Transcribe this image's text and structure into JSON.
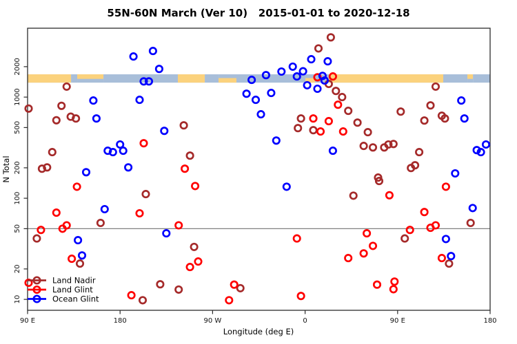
{
  "title": "55N-60N March (Ver 10)   2015-01-01 to 2020-12-18",
  "chart_data": {
    "type": "scatter",
    "title": "55N-60N March (Ver 10)   2015-01-01 to 2020-12-18",
    "xlabel": "Longitude (deg E)",
    "ylabel": "N Total",
    "x_axis": {
      "min": -270,
      "max": 180,
      "ticks": [
        {
          "value": -270,
          "label": "90 E"
        },
        {
          "value": -180,
          "label": "180"
        },
        {
          "value": -90,
          "label": "90 W"
        },
        {
          "value": 0,
          "label": "0"
        },
        {
          "value": 90,
          "label": "90 E"
        },
        {
          "value": 180,
          "label": "180"
        }
      ]
    },
    "y_axis": {
      "scale": "log",
      "min": 7.8,
      "max": 4800,
      "ticks": [
        2000,
        1000,
        500,
        200,
        100,
        50,
        20,
        10
      ]
    },
    "reference_line_y": 50,
    "grid": "off",
    "legend_position": "bottom-left",
    "map_band": {
      "value_top": 1680,
      "value_bottom": 1390,
      "land_color": "#FBD27D",
      "ocean_color": "#A8BED9",
      "segments": [
        {
          "from": -270,
          "to": -227.7,
          "type": "land"
        },
        {
          "from": -227.7,
          "to": -221.7,
          "type": "ocean"
        },
        {
          "from": -221.7,
          "to": -196.2,
          "type": "land_top"
        },
        {
          "from": -196.2,
          "to": -123.8,
          "type": "ocean"
        },
        {
          "from": -123.8,
          "to": -97.6,
          "type": "land"
        },
        {
          "from": -97.6,
          "to": -84.2,
          "type": "ocean"
        },
        {
          "from": -84.2,
          "to": -66.8,
          "type": "land_bottom"
        },
        {
          "from": -66.8,
          "to": 0.3,
          "type": "ocean"
        },
        {
          "from": 0.3,
          "to": 9.7,
          "type": "land_bottom"
        },
        {
          "from": 9.7,
          "to": 23.1,
          "type": "ocean"
        },
        {
          "from": 23.1,
          "to": 134.4,
          "type": "land"
        },
        {
          "from": 134.4,
          "to": 157.9,
          "type": "ocean"
        },
        {
          "from": 157.9,
          "to": 163.3,
          "type": "land_top"
        },
        {
          "from": 163.3,
          "to": 180,
          "type": "ocean"
        }
      ]
    },
    "series": [
      {
        "name": "Land Nadir",
        "color": "#A52A2A",
        "marker": "open-circle",
        "points": [
          [
            -269,
            770
          ],
          [
            -232,
            1270
          ],
          [
            -237,
            820
          ],
          [
            -228,
            640
          ],
          [
            -223,
            615
          ],
          [
            -242,
            590
          ],
          [
            -246,
            286
          ],
          [
            -256,
            196
          ],
          [
            -251,
            202
          ],
          [
            -118,
            526
          ],
          [
            -112,
            264
          ],
          [
            25,
            3900
          ],
          [
            13,
            3030
          ],
          [
            23,
            1350
          ],
          [
            30,
            1150
          ],
          [
            36,
            1000
          ],
          [
            -4,
            615
          ],
          [
            -7,
            494
          ],
          [
            8,
            471
          ],
          [
            127,
            1270
          ],
          [
            42,
            731
          ],
          [
            93,
            719
          ],
          [
            122,
            828
          ],
          [
            133,
            655
          ],
          [
            136,
            615
          ],
          [
            116,
            587
          ],
          [
            51,
            560
          ],
          [
            61,
            450
          ],
          [
            57,
            329
          ],
          [
            66,
            318
          ],
          [
            77,
            318
          ],
          [
            81,
            340
          ],
          [
            86,
            344
          ],
          [
            111,
            286
          ],
          [
            103,
            199
          ],
          [
            107,
            212
          ],
          [
            71,
            160
          ],
          [
            -155,
            110
          ],
          [
            -199,
            57
          ],
          [
            -261,
            40
          ],
          [
            -219,
            22.6
          ],
          [
            -141,
            14.1
          ],
          [
            -123,
            12.5
          ],
          [
            -158,
            9.8
          ],
          [
            -108,
            33
          ],
          [
            -63,
            12.9
          ],
          [
            72,
            148
          ],
          [
            47,
            106
          ],
          [
            97,
            40
          ],
          [
            161,
            57
          ],
          [
            140,
            22.6
          ]
        ]
      },
      {
        "name": "Land Glint",
        "color": "#FF0000",
        "marker": "open-circle",
        "points": [
          [
            -157,
            350
          ],
          [
            -117,
            196
          ],
          [
            -107,
            132
          ],
          [
            12,
            1570
          ],
          [
            27,
            1600
          ],
          [
            8,
            615
          ],
          [
            15,
            457
          ],
          [
            23,
            578
          ],
          [
            37,
            457
          ],
          [
            32,
            841
          ],
          [
            -222,
            130
          ],
          [
            -242,
            72
          ],
          [
            -257,
            48.6
          ],
          [
            -236,
            50
          ],
          [
            -232,
            54
          ],
          [
            -161,
            71
          ],
          [
            -123,
            54
          ],
          [
            -227,
            25.2
          ],
          [
            -169,
            11
          ],
          [
            -269,
            14.6
          ],
          [
            -8,
            40
          ],
          [
            -104,
            23.7
          ],
          [
            -112,
            20.9
          ],
          [
            -69,
            14
          ],
          [
            -74,
            9.8
          ],
          [
            -4,
            10.8
          ],
          [
            82,
            107
          ],
          [
            137,
            130
          ],
          [
            116,
            73
          ],
          [
            102,
            48.6
          ],
          [
            122,
            51
          ],
          [
            127,
            54
          ],
          [
            60,
            45
          ],
          [
            66,
            33.8
          ],
          [
            57,
            28.5
          ],
          [
            42,
            25.6
          ],
          [
            133,
            25.6
          ],
          [
            70,
            14
          ],
          [
            87,
            15
          ],
          [
            86,
            12.6
          ]
        ]
      },
      {
        "name": "Ocean Glint",
        "color": "#0000FF",
        "marker": "open-circle",
        "points": [
          [
            -167,
            2520
          ],
          [
            -148,
            2860
          ],
          [
            -142,
            1900
          ],
          [
            -157,
            1430
          ],
          [
            -152,
            1430
          ],
          [
            -206,
            925
          ],
          [
            -161,
            940
          ],
          [
            -203,
            615
          ],
          [
            -137,
            464
          ],
          [
            -180,
            340
          ],
          [
            -177,
            295
          ],
          [
            -192,
            295
          ],
          [
            -187,
            286
          ],
          [
            -172,
            202
          ],
          [
            -213,
            181
          ],
          [
            6,
            2370
          ],
          [
            22,
            2260
          ],
          [
            -12,
            2000
          ],
          [
            -23,
            1790
          ],
          [
            -2,
            1800
          ],
          [
            -38,
            1650
          ],
          [
            -8,
            1600
          ],
          [
            -52,
            1480
          ],
          [
            17,
            1620
          ],
          [
            19,
            1460
          ],
          [
            2,
            1310
          ],
          [
            12,
            1210
          ],
          [
            -57,
            1080
          ],
          [
            -33,
            1100
          ],
          [
            -48,
            940
          ],
          [
            -43,
            676
          ],
          [
            -28,
            372
          ],
          [
            27,
            295
          ],
          [
            152,
            925
          ],
          [
            155,
            615
          ],
          [
            176,
            340
          ],
          [
            167,
            299
          ],
          [
            171,
            286
          ],
          [
            146,
            176
          ],
          [
            -195,
            78
          ],
          [
            -221,
            38.5
          ],
          [
            -217,
            27.2
          ],
          [
            -135,
            45
          ],
          [
            -18,
            130
          ],
          [
            163,
            80
          ],
          [
            137,
            39.5
          ],
          [
            142,
            26.8
          ]
        ]
      }
    ]
  },
  "style": {
    "axis_color": "#2b2b2b",
    "reference_line_color": "#808080",
    "background": "#ffffff"
  }
}
